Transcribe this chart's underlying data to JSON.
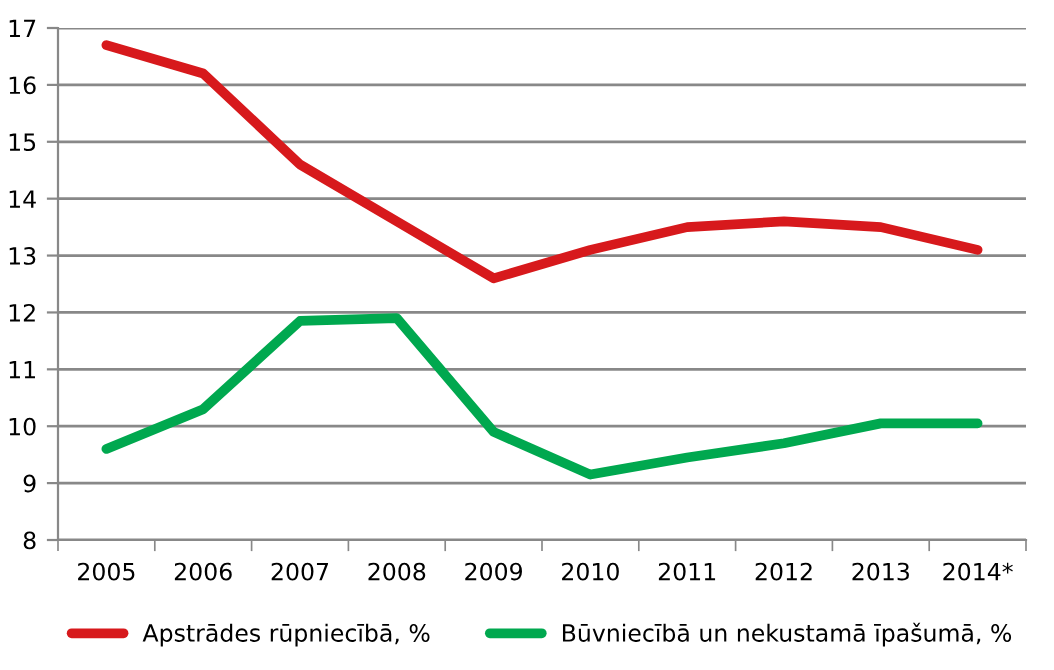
{
  "chart_data": {
    "type": "line",
    "categories": [
      "2005",
      "2006",
      "2007",
      "2008",
      "2009",
      "2010",
      "2011",
      "2012",
      "2013",
      "2014*"
    ],
    "series": [
      {
        "name": "Apstrādes rūpniecībā, %",
        "color": "#d7191c",
        "values": [
          16.7,
          16.2,
          14.6,
          13.6,
          12.6,
          13.1,
          13.5,
          13.6,
          13.5,
          13.1
        ]
      },
      {
        "name": "Būvniecībā un nekustamā īpašumā, %",
        "color": "#00a84f",
        "values": [
          9.6,
          10.3,
          11.85,
          11.9,
          9.9,
          9.15,
          9.45,
          9.7,
          10.05,
          10.05
        ]
      }
    ],
    "ylim": [
      8,
      17
    ],
    "yticks": [
      8,
      9,
      10,
      11,
      12,
      13,
      14,
      15,
      16,
      17
    ],
    "grid": "y",
    "legend": "bottom",
    "marker": "none",
    "line_style": "solid"
  }
}
